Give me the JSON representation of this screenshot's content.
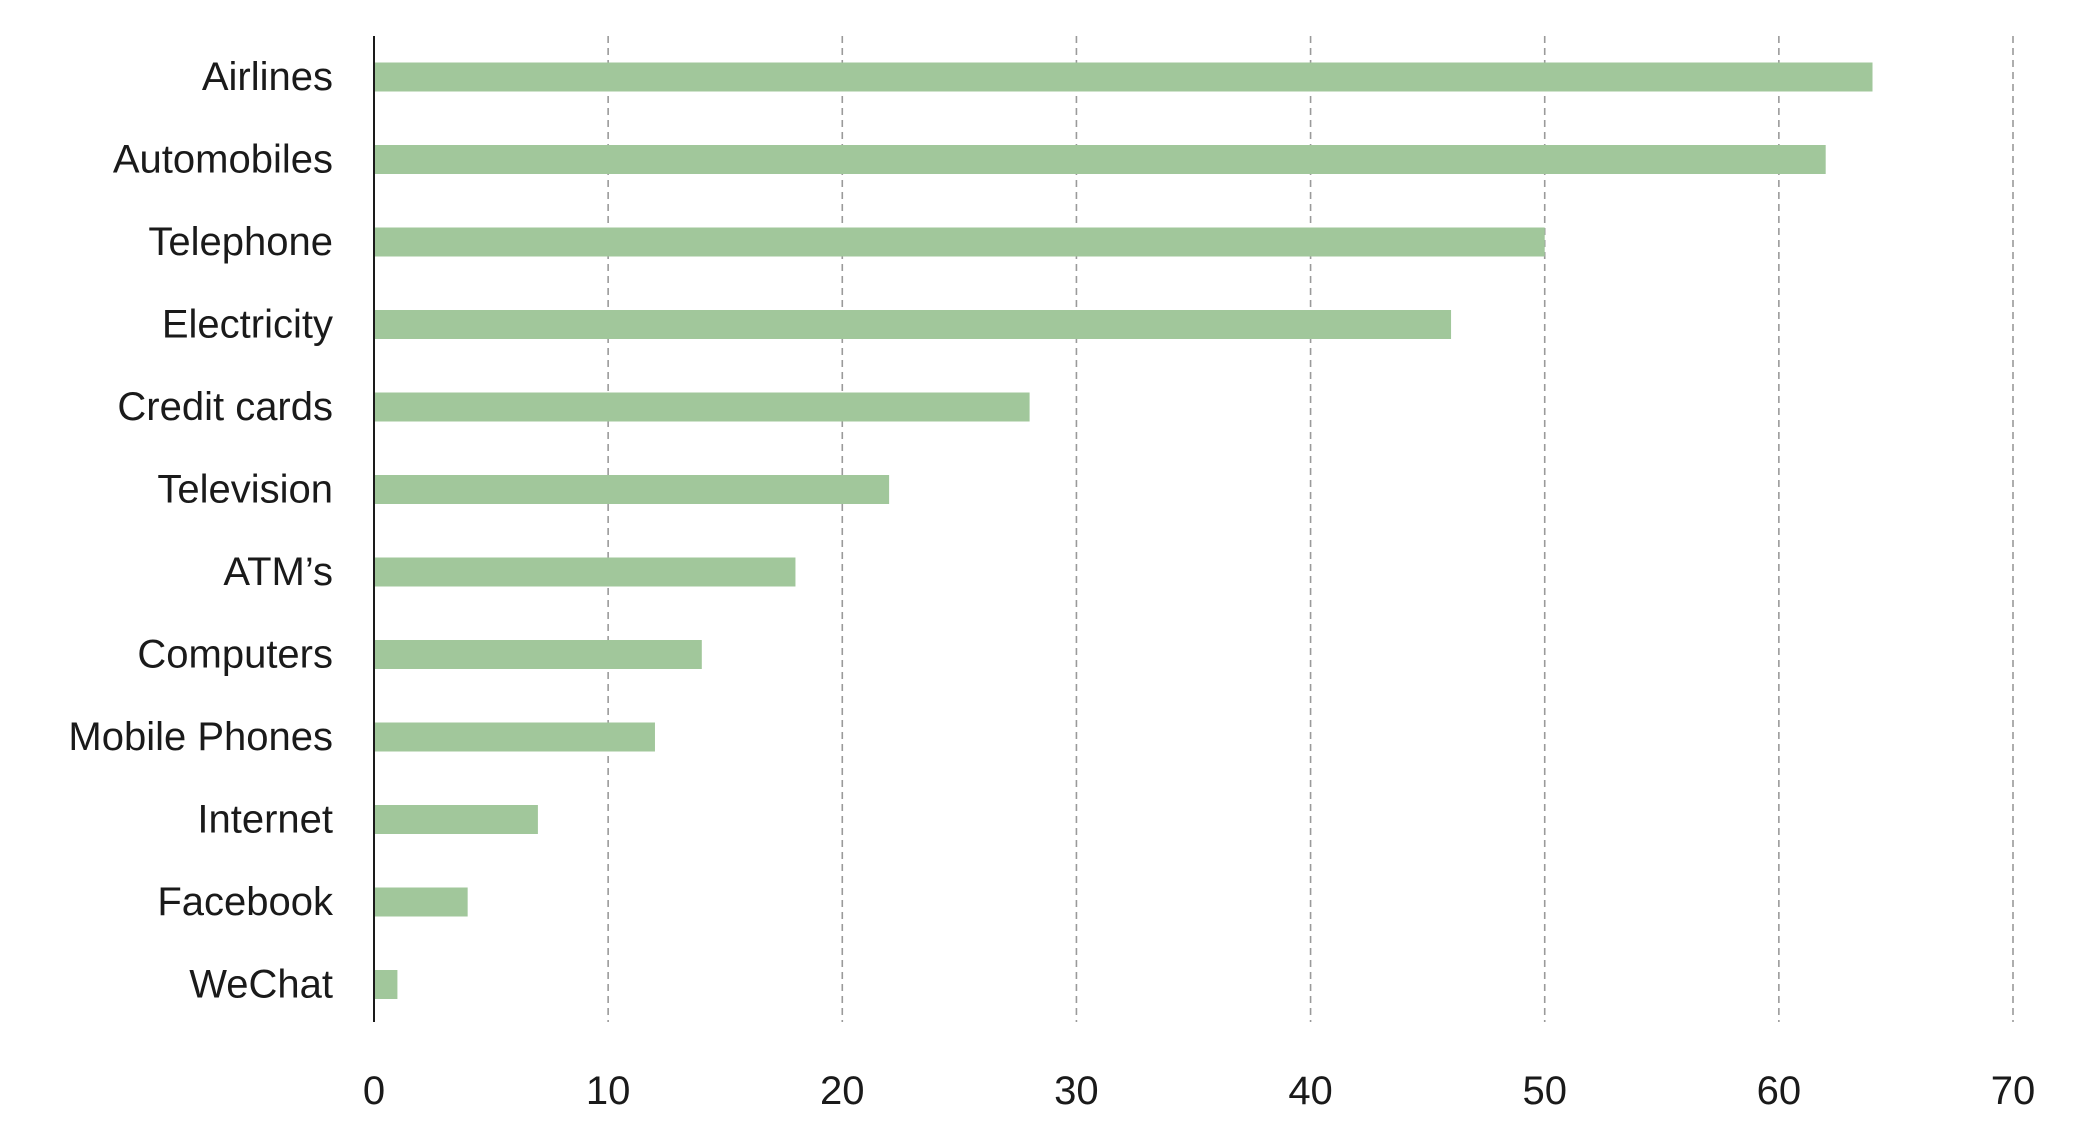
{
  "chart_data": {
    "type": "bar",
    "orientation": "horizontal",
    "title": "",
    "xlabel": "",
    "ylabel": "",
    "categories": [
      "Airlines",
      "Automobiles",
      "Telephone",
      "Electricity",
      "Credit cards",
      "Television",
      "ATM’s",
      "Computers",
      "Mobile Phones",
      "Internet",
      "Facebook",
      "WeChat"
    ],
    "values": [
      64,
      62,
      50,
      46,
      28,
      22,
      18,
      14,
      12,
      7,
      4,
      1
    ],
    "xlim": [
      0,
      70
    ],
    "xticks": [
      0,
      10,
      20,
      30,
      40,
      50,
      60,
      70
    ],
    "grid": true,
    "grid_style": "dashed vertical",
    "bar_color": "#a1c79b",
    "grid_color": "#9a9a9a",
    "axis_color": "#1a1a1a"
  }
}
